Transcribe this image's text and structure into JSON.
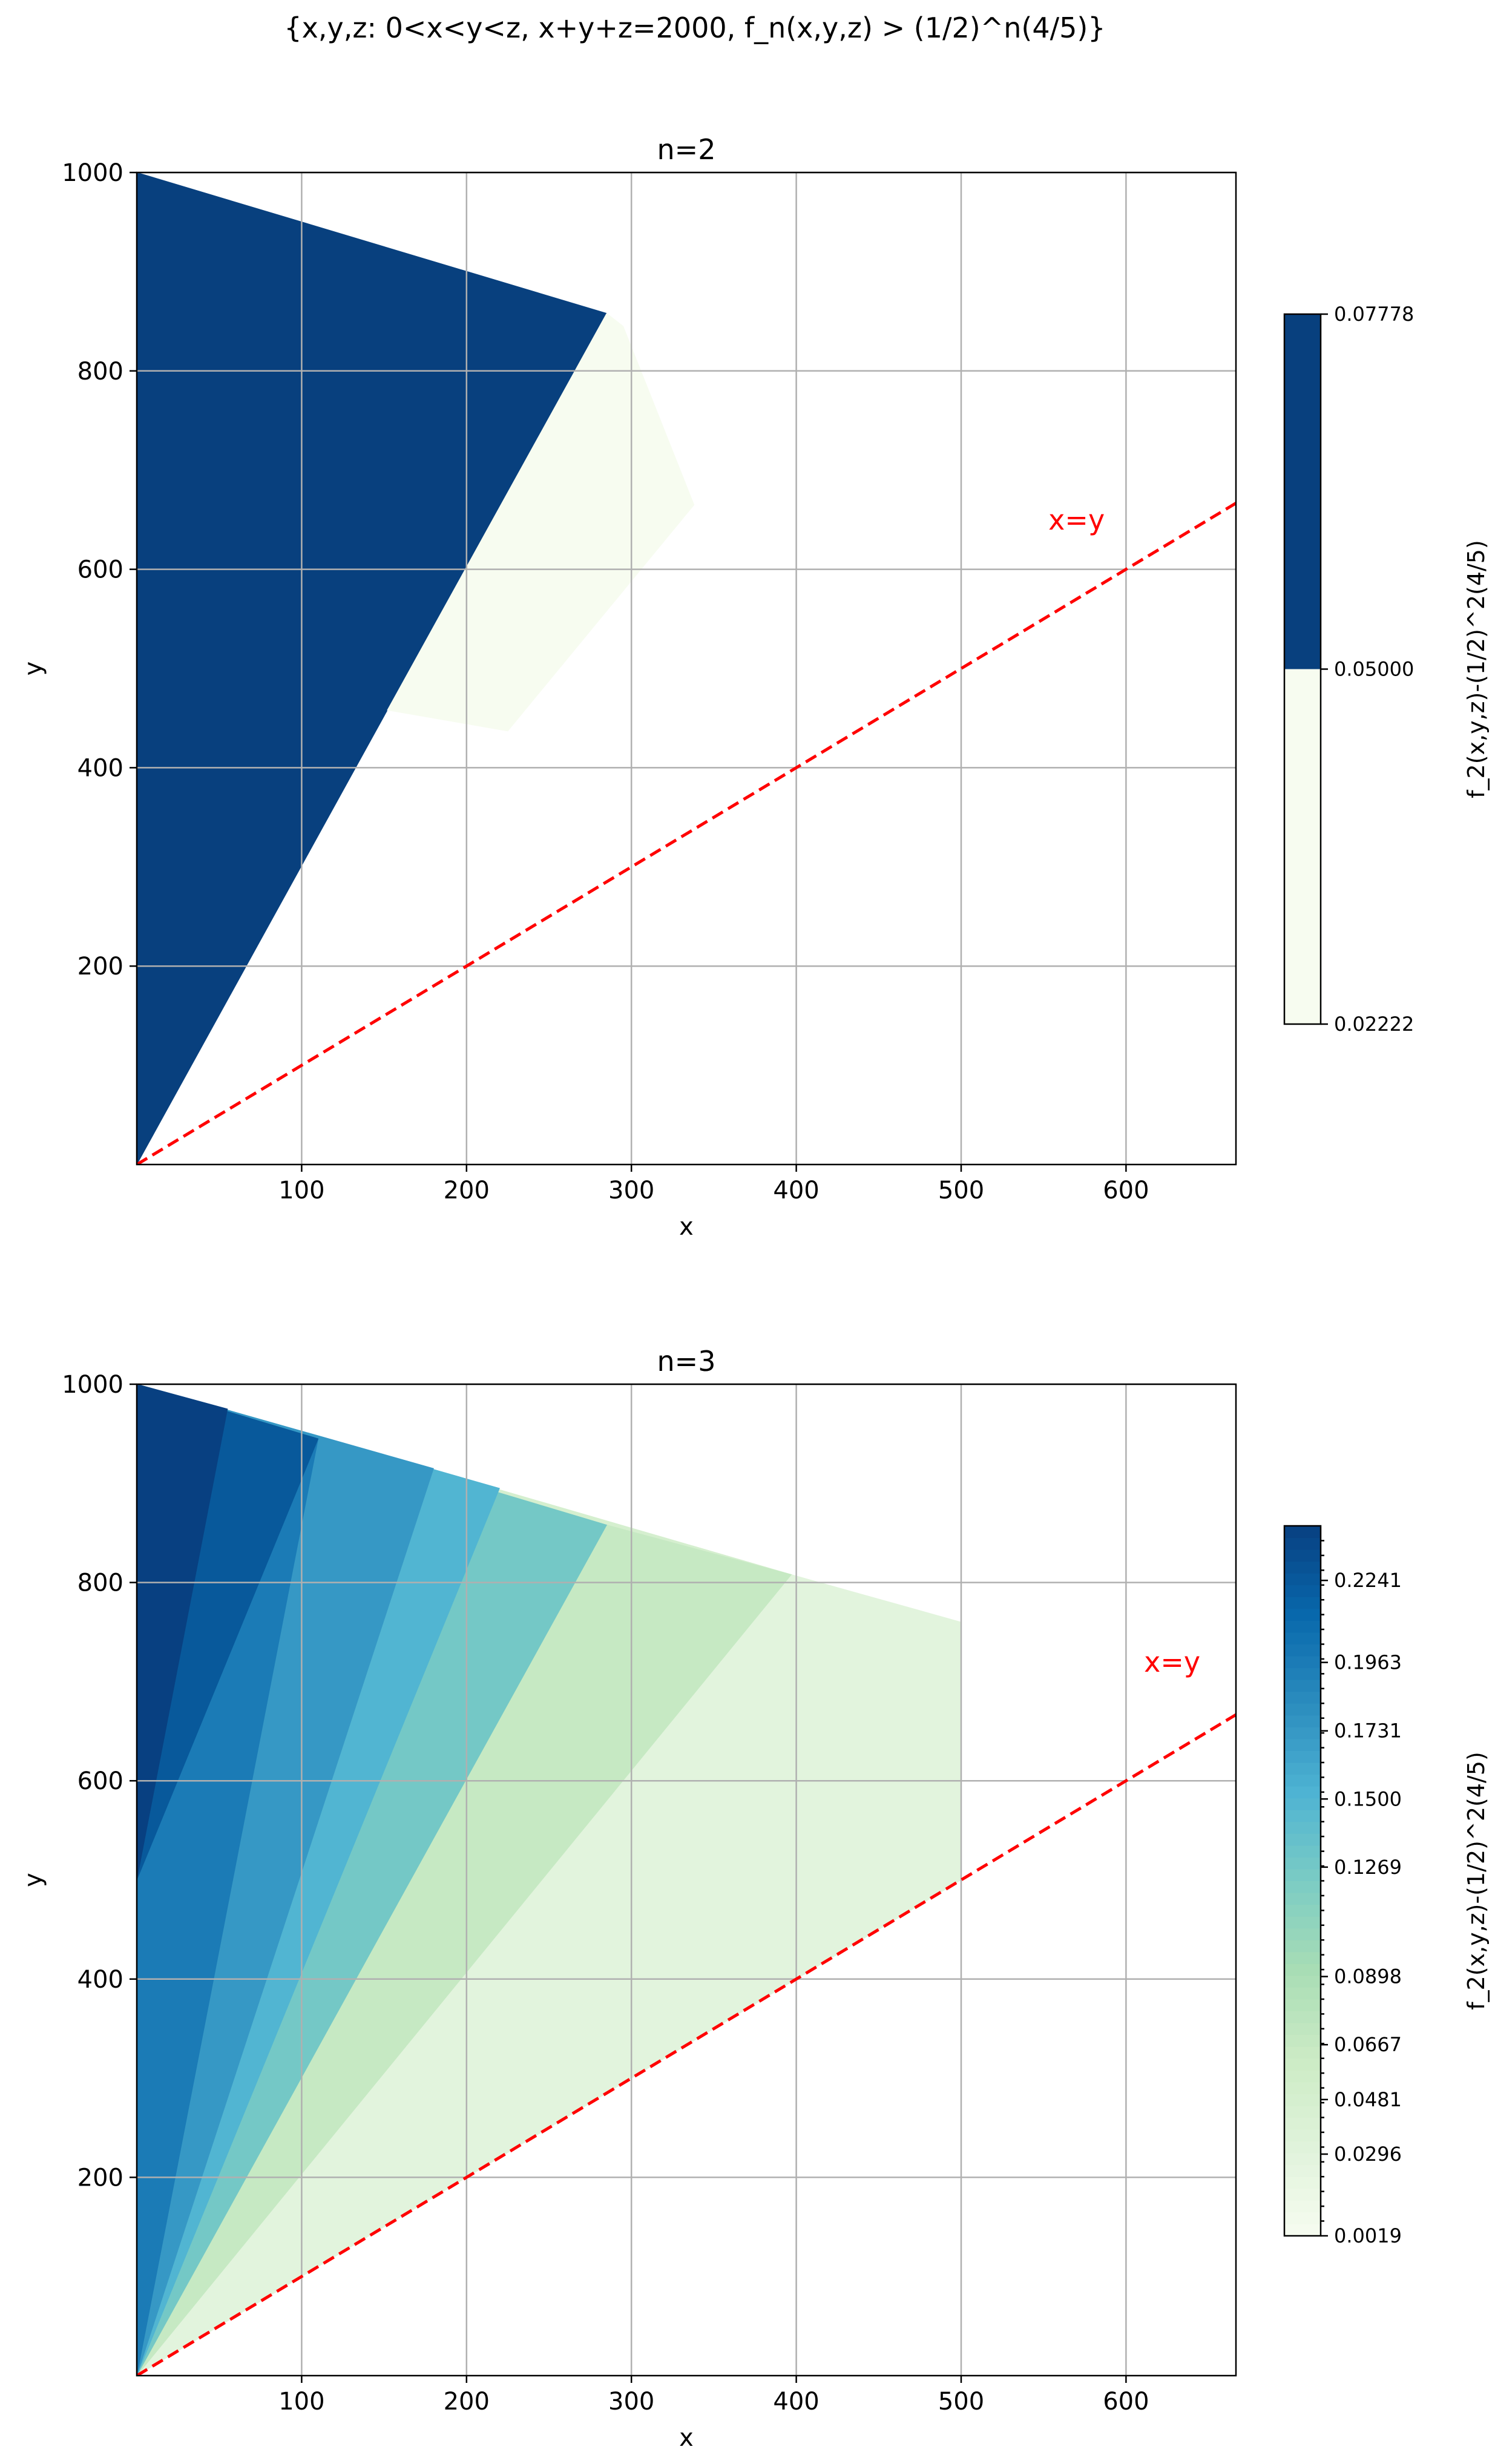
{
  "figure": {
    "suptitle": "{x,y,z: 0<x<y<z, x+y+z=2000, f_n(x,y,z) > (1/2)^n(4/5)}"
  },
  "chart_data": [
    {
      "type": "heatmap",
      "title": "n=2",
      "xlabel": "x",
      "ylabel": "y",
      "xlim": [
        0,
        666.67
      ],
      "ylim": [
        0,
        1000
      ],
      "xticks": [
        100,
        200,
        300,
        400,
        500,
        600
      ],
      "yticks": [
        200,
        400,
        600,
        800,
        1000
      ],
      "grid": true,
      "reference_line": {
        "label": "x=y",
        "slope": 1,
        "color": "#ff0000",
        "style": "dashed"
      },
      "colorbar": {
        "label": "f_2(x,y,z)-(1/2)^2(4/5)",
        "range": [
          0.02222,
          0.07778
        ],
        "ticks": [
          "0.02222",
          "0.05000",
          "0.07778"
        ],
        "tick_values": [
          0.02222,
          0.05,
          0.07778
        ],
        "levels": [
          {
            "from": 0.02222,
            "to": 0.05,
            "color": "#f7fcf0"
          },
          {
            "from": 0.05,
            "to": 0.07778,
            "color": "#08407e"
          }
        ]
      },
      "regions": [
        {
          "level": 1,
          "points": [
            [
              0,
              1000
            ],
            [
              285,
              858
            ],
            [
              152,
              458
            ],
            [
              0,
              0
            ]
          ]
        },
        {
          "level": 0,
          "points": [
            [
              152,
              458
            ],
            [
              285,
              858
            ],
            [
              295,
              845
            ],
            [
              338,
              665
            ],
            [
              225,
              437
            ]
          ]
        }
      ]
    },
    {
      "type": "heatmap",
      "title": "n=3",
      "xlabel": "x",
      "ylabel": "y",
      "xlim": [
        0,
        666.67
      ],
      "ylim": [
        0,
        1000
      ],
      "xticks": [
        100,
        200,
        300,
        400,
        500,
        600
      ],
      "yticks": [
        200,
        400,
        600,
        800,
        1000
      ],
      "grid": true,
      "reference_line": {
        "label": "x=y",
        "slope": 1,
        "color": "#ff0000",
        "style": "dashed"
      },
      "colorbar": {
        "label": "f_2(x,y,z)-(1/2)^2(4/5)",
        "range": [
          0.0019,
          0.2426
        ],
        "ticks": [
          "0.0019",
          "0.0296",
          "0.0481",
          "0.0667",
          "0.0898",
          "0.1269",
          "0.1500",
          "0.1731",
          "0.1963",
          "0.2241"
        ],
        "tick_values": [
          0.0019,
          0.0296,
          0.0481,
          0.0667,
          0.0898,
          0.1269,
          0.15,
          0.1731,
          0.1963,
          0.2241
        ]
      },
      "regions": [
        {
          "value": 0.0296,
          "points": [
            [
              0,
              0
            ],
            [
              500,
              500
            ],
            [
              500,
              760
            ],
            [
              397,
              808
            ],
            [
              0,
              1000
            ]
          ]
        },
        {
          "value": 0.0481,
          "points": [
            [
              0,
              0
            ],
            [
              397,
              808
            ],
            [
              0,
              1000
            ]
          ]
        },
        {
          "value": 0.0667,
          "points": [
            [
              0,
              0
            ],
            [
              397,
              808
            ],
            [
              285,
              858
            ],
            [
              0,
              1000
            ]
          ]
        },
        {
          "value": 0.1269,
          "points": [
            [
              0,
              0
            ],
            [
              285,
              858
            ],
            [
              0,
              1000
            ]
          ]
        },
        {
          "value": 0.15,
          "points": [
            [
              0,
              0
            ],
            [
              220,
              895
            ],
            [
              0,
              1000
            ]
          ]
        },
        {
          "value": 0.1731,
          "points": [
            [
              0,
              0
            ],
            [
              180,
              915
            ],
            [
              0,
              1000
            ]
          ]
        },
        {
          "value": 0.1963,
          "points": [
            [
              0,
              0
            ],
            [
              110,
              945
            ],
            [
              0,
              1000
            ]
          ]
        },
        {
          "value": 0.2241,
          "points": [
            [
              0,
              500
            ],
            [
              110,
              945
            ],
            [
              0,
              1000
            ]
          ]
        },
        {
          "value": 0.2426,
          "points": [
            [
              0,
              500
            ],
            [
              55,
              975
            ],
            [
              0,
              1000
            ]
          ]
        }
      ]
    }
  ]
}
